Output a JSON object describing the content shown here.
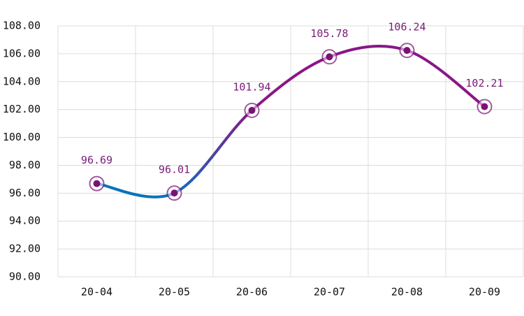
{
  "chart_data": {
    "type": "line",
    "categories": [
      "20-04",
      "20-05",
      "20-06",
      "20-07",
      "20-08",
      "20-09"
    ],
    "values": [
      96.69,
      96.01,
      101.94,
      105.78,
      106.24,
      102.21
    ],
    "line_colors": [
      "#0a72bd",
      "#8a1686"
    ],
    "marker_color": "#7a1276",
    "ylim": [
      90,
      108
    ],
    "yticks": [
      {
        "value": 90,
        "label": "90.00"
      },
      {
        "value": 92,
        "label": "92.00"
      },
      {
        "value": 94,
        "label": "94.00"
      },
      {
        "value": 96,
        "label": "96.00"
      },
      {
        "value": 98,
        "label": "98.00"
      },
      {
        "value": 100,
        "label": "100.00"
      },
      {
        "value": 102,
        "label": "102.00"
      },
      {
        "value": 104,
        "label": "104.00"
      },
      {
        "value": 106,
        "label": "106.00"
      },
      {
        "value": 108,
        "label": "108.00"
      }
    ],
    "grid": true,
    "smooth": true
  }
}
